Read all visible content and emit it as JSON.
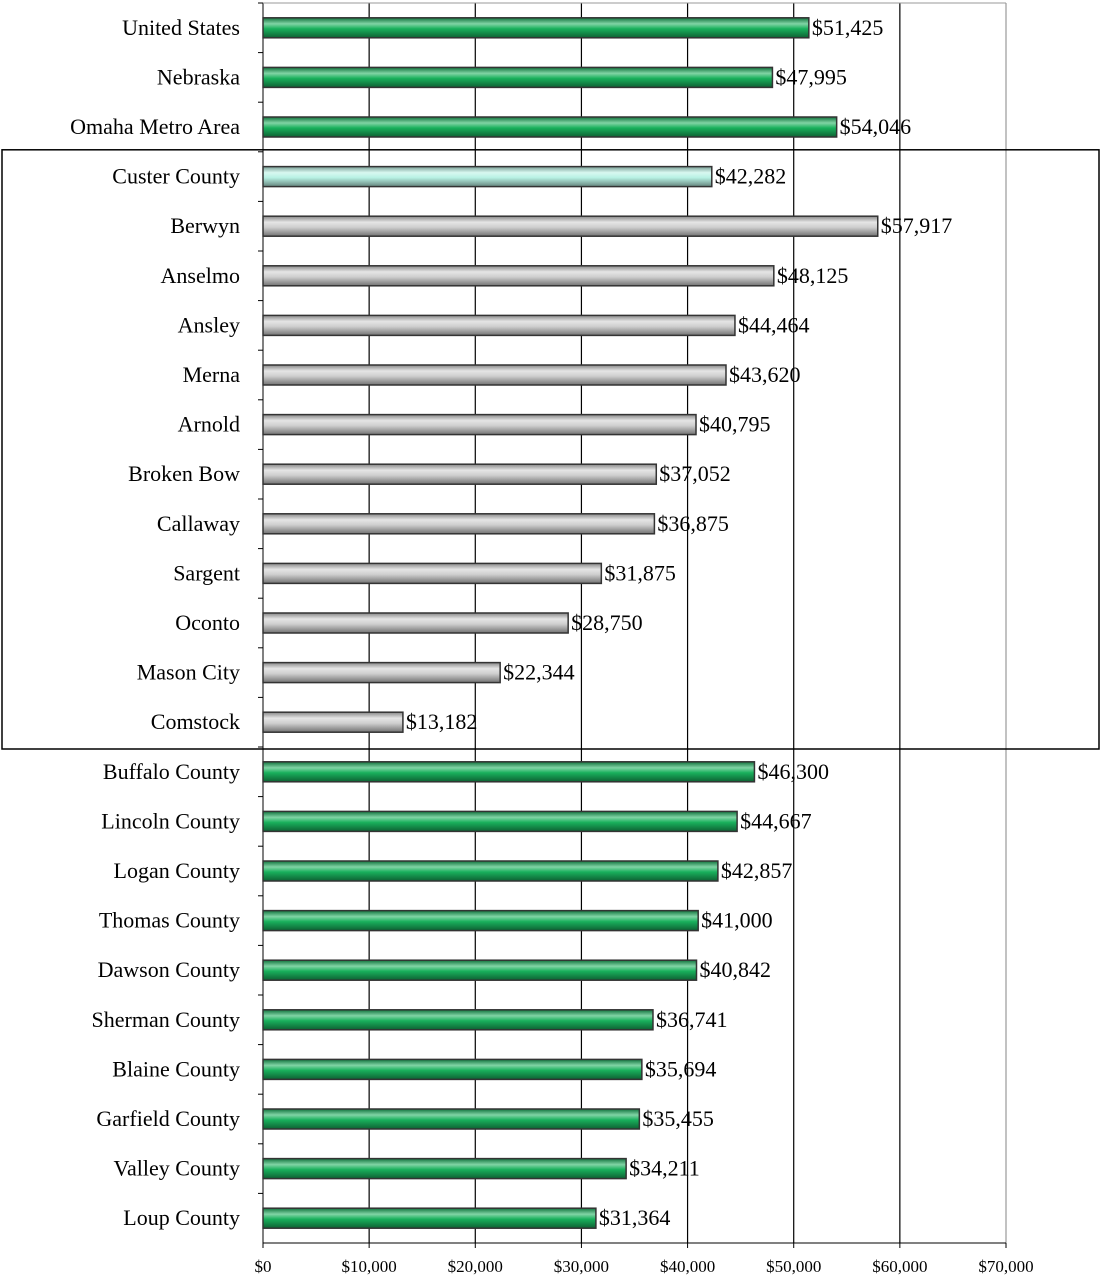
{
  "chart_data": {
    "type": "bar",
    "orientation": "horizontal",
    "categories": [
      "United States",
      "Nebraska",
      "Omaha Metro Area",
      "Custer County",
      "Berwyn",
      "Anselmo",
      "Ansley",
      "Merna",
      "Arnold",
      "Broken Bow",
      "Callaway",
      "Sargent",
      "Oconto",
      "Mason City",
      "Comstock",
      "Buffalo County",
      "Lincoln County",
      "Logan County",
      "Thomas County",
      "Dawson County",
      "Sherman County",
      "Blaine County",
      "Garfield County",
      "Valley County",
      "Loup County"
    ],
    "values": [
      51425,
      47995,
      54046,
      42282,
      57917,
      48125,
      44464,
      43620,
      40795,
      37052,
      36875,
      31875,
      28750,
      22344,
      13182,
      46300,
      44667,
      42857,
      41000,
      40842,
      36741,
      35694,
      35455,
      34211,
      31364
    ],
    "value_labels": [
      "$51,425",
      "$47,995",
      "$54,046",
      "$42,282",
      "$57,917",
      "$48,125",
      "$44,464",
      "$43,620",
      "$40,795",
      "$37,052",
      "$36,875",
      "$31,875",
      "$28,750",
      "$22,344",
      "$13,182",
      "$46,300",
      "$44,667",
      "$42,857",
      "$41,000",
      "$40,842",
      "$36,741",
      "$35,694",
      "$35,455",
      "$34,211",
      "$31,364"
    ],
    "colors": [
      "#19b05c",
      "#19b05c",
      "#19b05c",
      "#b8f2e4",
      "#cfcfcf",
      "#cfcfcf",
      "#cfcfcf",
      "#cfcfcf",
      "#cfcfcf",
      "#cfcfcf",
      "#cfcfcf",
      "#cfcfcf",
      "#cfcfcf",
      "#cfcfcf",
      "#cfcfcf",
      "#19b05c",
      "#19b05c",
      "#19b05c",
      "#19b05c",
      "#19b05c",
      "#19b05c",
      "#19b05c",
      "#19b05c",
      "#19b05c",
      "#19b05c"
    ],
    "xlim": [
      0,
      70000
    ],
    "xticks": [
      {
        "value": 0,
        "label": "$0"
      },
      {
        "value": 10000,
        "label": "$10,000"
      },
      {
        "value": 20000,
        "label": "$20,000"
      },
      {
        "value": 30000,
        "label": "$30,000"
      },
      {
        "value": 40000,
        "label": "$40,000"
      },
      {
        "value": 50000,
        "label": "$50,000"
      },
      {
        "value": 60000,
        "label": "$60,000"
      },
      {
        "value": 70000,
        "label": "$70,000"
      }
    ],
    "grid": true
  }
}
